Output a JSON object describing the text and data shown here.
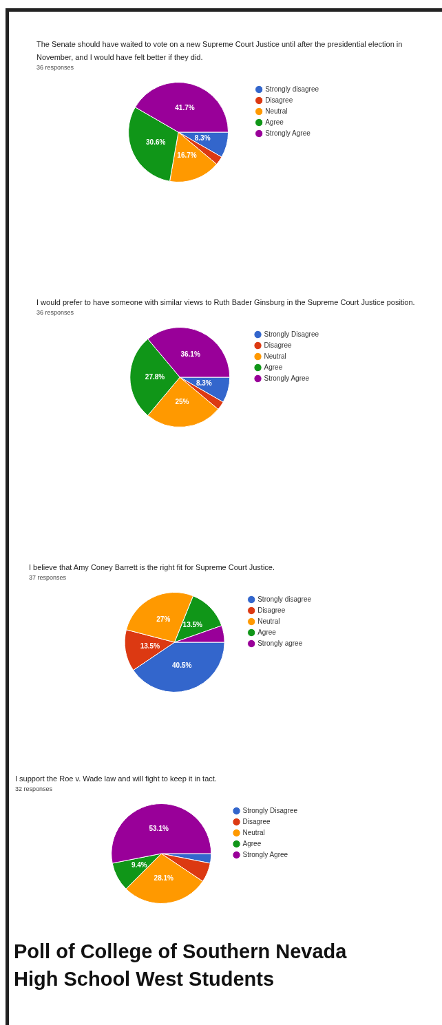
{
  "chart_data": [
    {
      "type": "pie",
      "title": "The Senate should have waited to vote on a new Supreme Court Justice until after the presidential election in November, and I would have felt better if they did.",
      "subtitle": "36 responses",
      "categories": [
        "Strongly disagree",
        "Disagree",
        "Neutral",
        "Agree",
        "Strongly Agree"
      ],
      "values": [
        8.3,
        2.8,
        16.7,
        30.6,
        41.7
      ],
      "value_labels": [
        "8.3%",
        null,
        "16.7%",
        "30.6%",
        "41.7%"
      ],
      "colors": [
        "#3366cc",
        "#dc3912",
        "#ff9900",
        "#109618",
        "#990099"
      ],
      "legend": "right"
    },
    {
      "type": "pie",
      "title": "I would prefer to have someone with similar views to Ruth Bader Ginsburg in the Supreme Court Justice position.",
      "subtitle": "36 responses",
      "categories": [
        "Strongly Disagree",
        "Disagree",
        "Neutral",
        "Agree",
        "Strongly Agree"
      ],
      "values": [
        8.3,
        2.8,
        25,
        27.8,
        36.1
      ],
      "value_labels": [
        "8.3%",
        null,
        "25%",
        "27.8%",
        "36.1%"
      ],
      "colors": [
        "#3366cc",
        "#dc3912",
        "#ff9900",
        "#109618",
        "#990099"
      ],
      "legend": "right"
    },
    {
      "type": "pie",
      "title": "I believe that Amy Coney Barrett is the right fit for Supreme Court Justice.",
      "subtitle": "37 responses",
      "categories": [
        "Strongly disagree",
        "Disagree",
        "Neutral",
        "Agree",
        "Strongly agree"
      ],
      "values": [
        40.5,
        13.5,
        27,
        13.5,
        5.4
      ],
      "value_labels": [
        "40.5%",
        "13.5%",
        "27%",
        "13.5%",
        null
      ],
      "colors": [
        "#3366cc",
        "#dc3912",
        "#ff9900",
        "#109618",
        "#990099"
      ],
      "legend": "right"
    },
    {
      "type": "pie",
      "title": "I support the Roe v. Wade law and will fight to keep it in tact.",
      "subtitle": "32 responses",
      "categories": [
        "Strongly Disagree",
        "Disagree",
        "Neutral",
        "Agree",
        "Strongly Agree"
      ],
      "values": [
        3.1,
        6.3,
        28.1,
        9.4,
        53.1
      ],
      "value_labels": [
        null,
        null,
        "28.1%",
        "9.4%",
        "53.1%"
      ],
      "colors": [
        "#3366cc",
        "#dc3912",
        "#ff9900",
        "#109618",
        "#990099"
      ],
      "legend": "right",
      "annotations": [
        "Poll of College of Southern Nevada High School West Students"
      ]
    }
  ]
}
